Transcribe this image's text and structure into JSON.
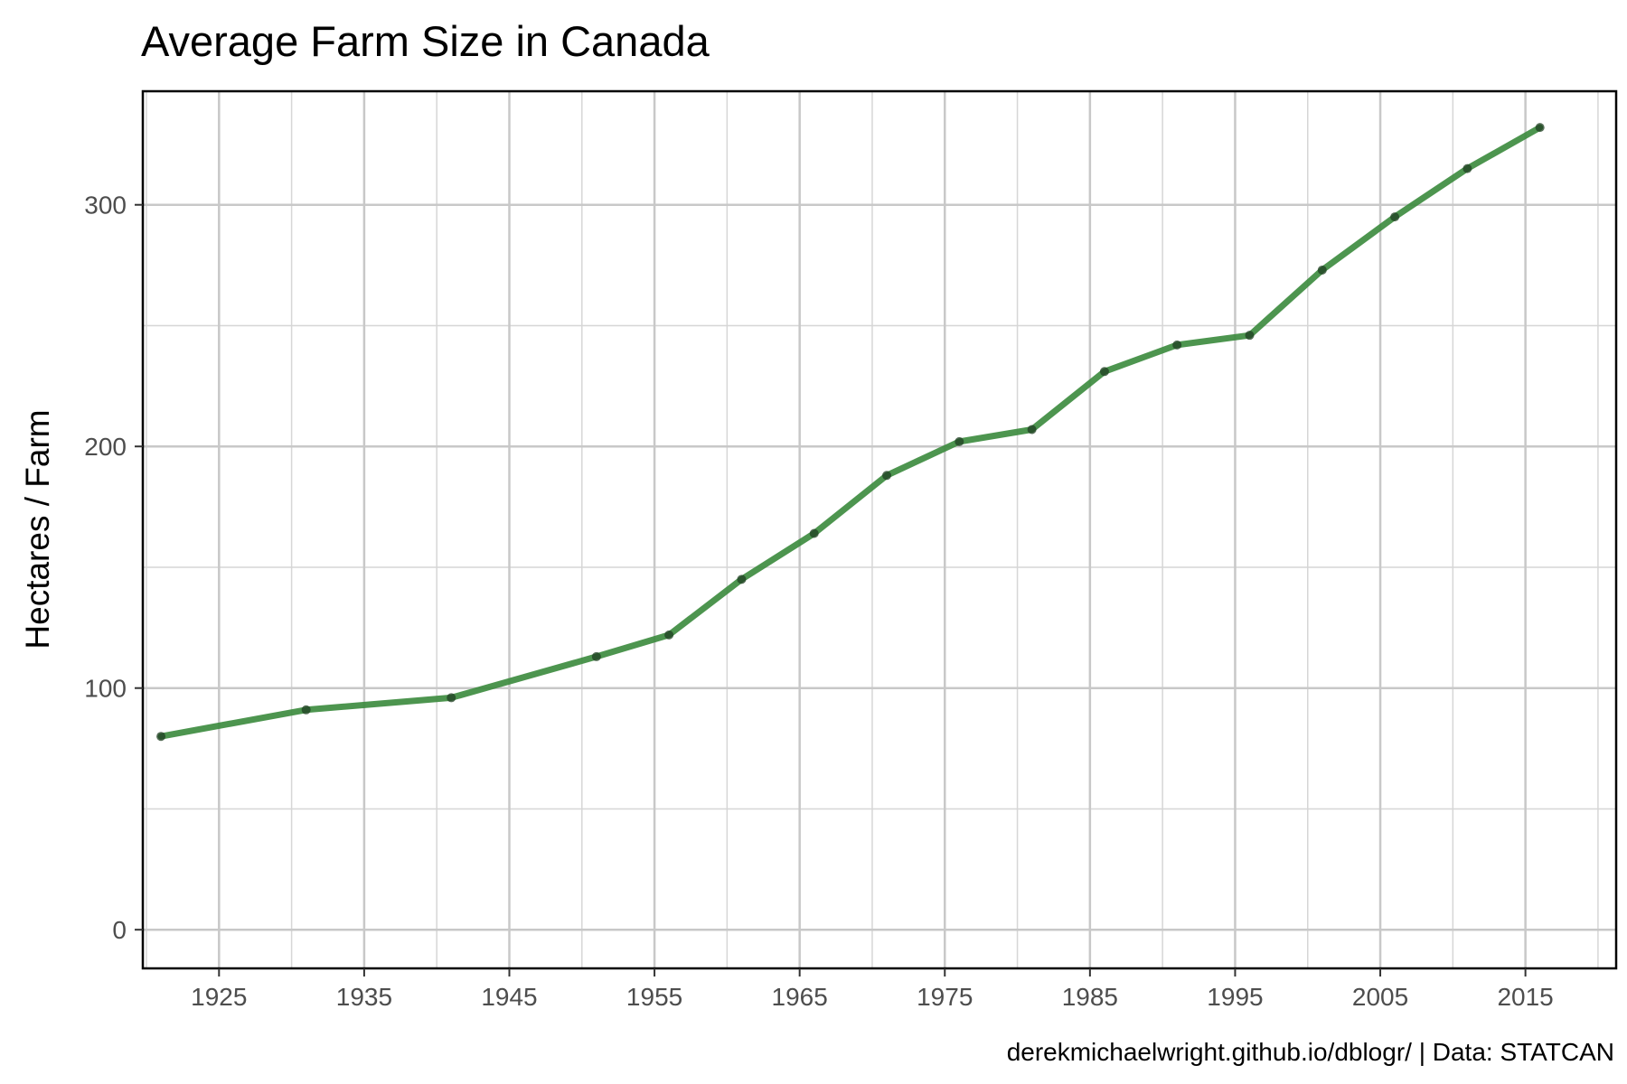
{
  "chart_data": {
    "type": "line",
    "title": "Average Farm Size in Canada",
    "xlabel": "",
    "ylabel": "Hectares / Farm",
    "caption": "derekmichaelwright.github.io/dblogr/ | Data: STATCAN",
    "xlim": [
      1919.75,
      2021.25
    ],
    "ylim": [
      -16,
      347
    ],
    "x_ticks": [
      1925,
      1935,
      1945,
      1955,
      1965,
      1975,
      1985,
      1995,
      2005,
      2015
    ],
    "x_minor_ticks": [
      1920,
      1930,
      1940,
      1950,
      1960,
      1970,
      1980,
      1990,
      2000,
      2010,
      2020
    ],
    "y_ticks": [
      0,
      100,
      200,
      300
    ],
    "y_minor_ticks": [
      50,
      150,
      250
    ],
    "grid": true,
    "line_color": "#3a8a3c",
    "point_color": "#1f3f22",
    "series": [
      {
        "x": [
          1921,
          1931,
          1941,
          1951,
          1956,
          1961,
          1966,
          1971,
          1976,
          1981,
          1986,
          1991,
          1996,
          2001,
          2006,
          2011,
          2016
        ],
        "values": [
          80,
          91,
          96,
          113,
          122,
          145,
          164,
          188,
          202,
          207,
          231,
          242,
          246,
          273,
          295,
          315,
          332
        ]
      }
    ]
  }
}
